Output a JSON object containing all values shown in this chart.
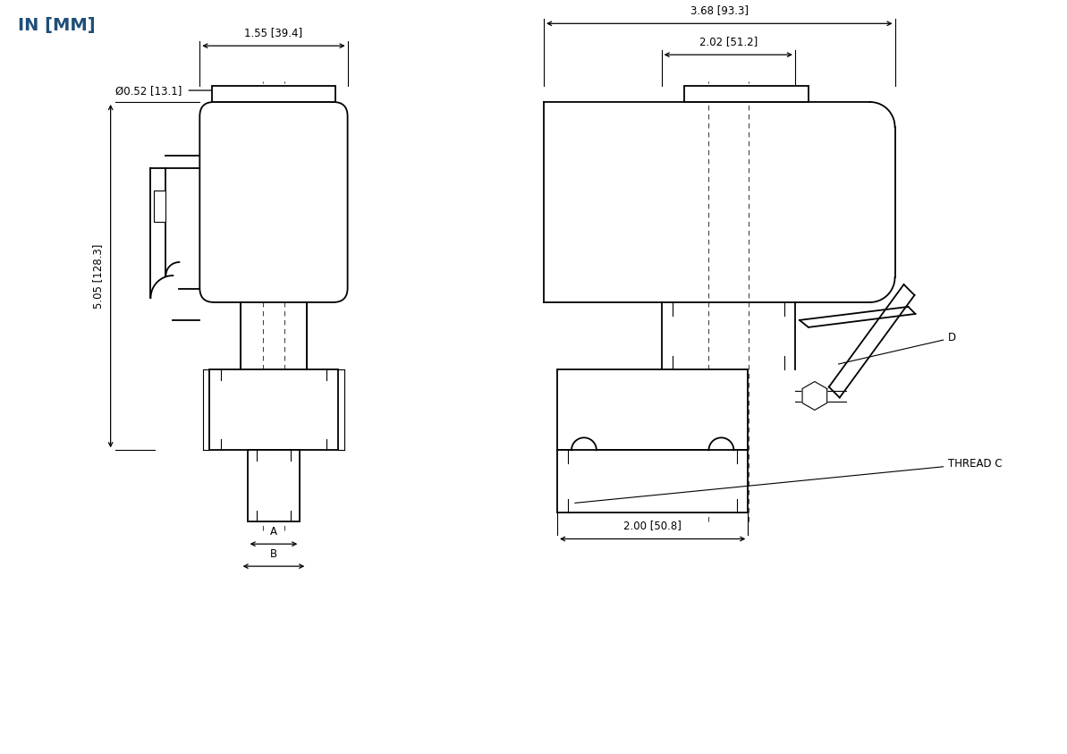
{
  "title": "IN [MM]",
  "title_color": "#1f4e79",
  "bg_color": "#ffffff",
  "line_color": "#000000",
  "fig_width": 11.93,
  "fig_height": 8.43,
  "annotations": {
    "dim_1_55": "1.55 [39.4]",
    "dim_dia": "Ø0.52 [13.1]",
    "dim_5_05": "5.05 [128.3]",
    "dim_A": "A",
    "dim_B": "B",
    "dim_3_68": "3.68 [93.3]",
    "dim_2_02": "2.02 [51.2]",
    "dim_2_00": "2.00 [50.8]",
    "label_D": "D",
    "label_thread": "THREAD C"
  }
}
